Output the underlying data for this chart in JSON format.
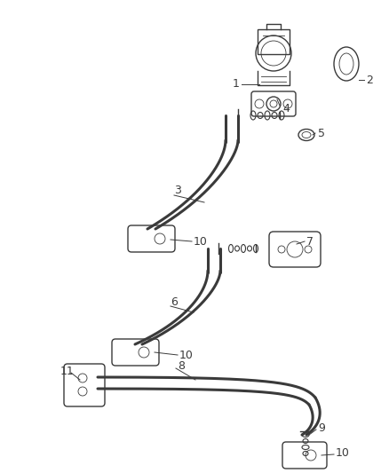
{
  "bg_color": "#ffffff",
  "line_color": "#3a3a3a",
  "label_color": "#3a3a3a",
  "pipe_lw": 2.2,
  "thin_lw": 1.0,
  "label_fs": 9,
  "leader_lw": 0.7
}
